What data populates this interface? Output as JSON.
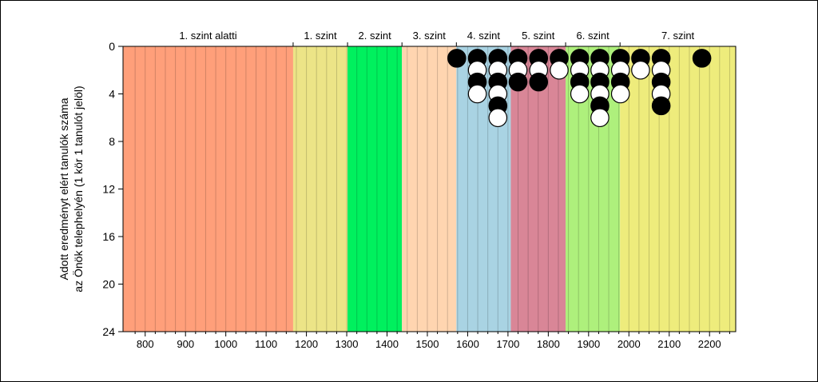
{
  "chart_data": {
    "type": "scatter",
    "title": "",
    "ylabel_lines": [
      "Adott eredményt elért tanulók száma",
      "az Önök telephelyén (1 kör 1 tanulót jelöl)"
    ],
    "xlabel": "",
    "xlim": [
      745,
      2265
    ],
    "ylim": [
      0,
      24
    ],
    "y_inverted": true,
    "xticks": [
      800,
      900,
      1000,
      1100,
      1200,
      1300,
      1400,
      1500,
      1600,
      1700,
      1800,
      1900,
      2000,
      2100,
      2200
    ],
    "yticks": [
      0,
      4,
      8,
      12,
      16,
      20,
      24
    ],
    "bands": [
      {
        "label": "1. szint alatti",
        "from": 745,
        "to": 1167,
        "color": "#ff9f7a"
      },
      {
        "label": "1. szint",
        "from": 1167,
        "to": 1302,
        "color": "#ece487"
      },
      {
        "label": "2. szint",
        "from": 1302,
        "to": 1437,
        "color": "#00f05e"
      },
      {
        "label": "3. szint",
        "from": 1437,
        "to": 1572,
        "color": "#ffd5b0"
      },
      {
        "label": "4. szint",
        "from": 1572,
        "to": 1707,
        "color": "#a9d3e3"
      },
      {
        "label": "5. szint",
        "from": 1707,
        "to": 1843,
        "color": "#d98697"
      },
      {
        "label": "6. szint",
        "from": 1843,
        "to": 1978,
        "color": "#aef07c"
      },
      {
        "label": "7. szint",
        "from": 1978,
        "to": 2265,
        "color": "#eeec7c"
      }
    ],
    "columns": [
      {
        "x": 1573,
        "markers": [
          "filled"
        ]
      },
      {
        "x": 1624,
        "markers": [
          "filled",
          "open",
          "filled",
          "open"
        ]
      },
      {
        "x": 1675,
        "markers": [
          "filled",
          "open",
          "filled",
          "open",
          "filled",
          "open"
        ]
      },
      {
        "x": 1725,
        "markers": [
          "filled",
          "open",
          "filled"
        ]
      },
      {
        "x": 1776,
        "markers": [
          "filled",
          "open",
          "filled"
        ]
      },
      {
        "x": 1827,
        "markers": [
          "filled",
          "open"
        ]
      },
      {
        "x": 1878,
        "markers": [
          "filled",
          "open",
          "filled",
          "open"
        ]
      },
      {
        "x": 1928,
        "markers": [
          "filled",
          "open",
          "filled",
          "open",
          "filled",
          "open"
        ]
      },
      {
        "x": 1979,
        "markers": [
          "filled",
          "open",
          "filled",
          "open"
        ]
      },
      {
        "x": 2029,
        "markers": [
          "filled",
          "open"
        ]
      },
      {
        "x": 2080,
        "markers": [
          "filled",
          "open",
          "filled",
          "open",
          "filled"
        ]
      },
      {
        "x": 2181,
        "markers": [
          "filled"
        ]
      }
    ]
  }
}
